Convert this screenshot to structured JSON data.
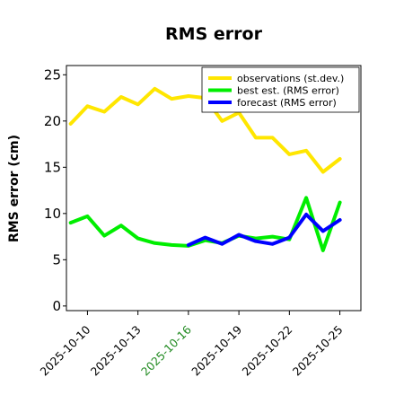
{
  "chart_data": {
    "type": "line",
    "title": "RMS error",
    "xlabel": "",
    "ylabel": "RMS error (cm)",
    "ylim": [
      -0.5,
      26
    ],
    "yticks": [
      0,
      5,
      10,
      15,
      20,
      25
    ],
    "xlim": [
      "2025-10-08T18:00",
      "2025-10-26T06:00"
    ],
    "xticks": [
      {
        "date": "2025-10-10",
        "label": "2025-10-10",
        "color": "#000000"
      },
      {
        "date": "2025-10-13",
        "label": "2025-10-13",
        "color": "#000000"
      },
      {
        "date": "2025-10-16",
        "label": "2025-10-16",
        "color": "#228b22"
      },
      {
        "date": "2025-10-19",
        "label": "2025-10-19",
        "color": "#000000"
      },
      {
        "date": "2025-10-22",
        "label": "2025-10-22",
        "color": "#000000"
      },
      {
        "date": "2025-10-25",
        "label": "2025-10-25",
        "color": "#000000"
      }
    ],
    "grid": false,
    "legend_position": "top-right",
    "series": [
      {
        "name": "observations (st.dev.)",
        "color": "#ffe600",
        "x": [
          "2025-10-09",
          "2025-10-10",
          "2025-10-11",
          "2025-10-12",
          "2025-10-13",
          "2025-10-14",
          "2025-10-15",
          "2025-10-16",
          "2025-10-17",
          "2025-10-18",
          "2025-10-19",
          "2025-10-20",
          "2025-10-21",
          "2025-10-22",
          "2025-10-23",
          "2025-10-24",
          "2025-10-25"
        ],
        "values": [
          19.7,
          21.6,
          21.0,
          22.6,
          21.8,
          23.5,
          22.4,
          22.7,
          22.5,
          20.0,
          20.9,
          18.2,
          18.2,
          16.4,
          16.8,
          14.5,
          15.9
        ]
      },
      {
        "name": "best est. (RMS error)",
        "color": "#00ee00",
        "x": [
          "2025-10-09",
          "2025-10-10",
          "2025-10-11",
          "2025-10-12",
          "2025-10-13",
          "2025-10-14",
          "2025-10-15",
          "2025-10-16",
          "2025-10-17",
          "2025-10-18",
          "2025-10-19",
          "2025-10-20",
          "2025-10-21",
          "2025-10-22",
          "2025-10-23",
          "2025-10-24",
          "2025-10-25"
        ],
        "values": [
          9.0,
          9.7,
          7.6,
          8.7,
          7.3,
          6.8,
          6.6,
          6.5,
          7.1,
          6.8,
          7.6,
          7.3,
          7.5,
          7.2,
          11.7,
          6.0,
          11.2
        ]
      },
      {
        "name": "forecast (RMS error)",
        "color": "#0000ff",
        "x": [
          "2025-10-16",
          "2025-10-17",
          "2025-10-18",
          "2025-10-19",
          "2025-10-20",
          "2025-10-21",
          "2025-10-22",
          "2025-10-23",
          "2025-10-24",
          "2025-10-25"
        ],
        "values": [
          6.6,
          7.4,
          6.7,
          7.7,
          7.0,
          6.7,
          7.4,
          9.9,
          8.1,
          9.3
        ]
      }
    ]
  }
}
